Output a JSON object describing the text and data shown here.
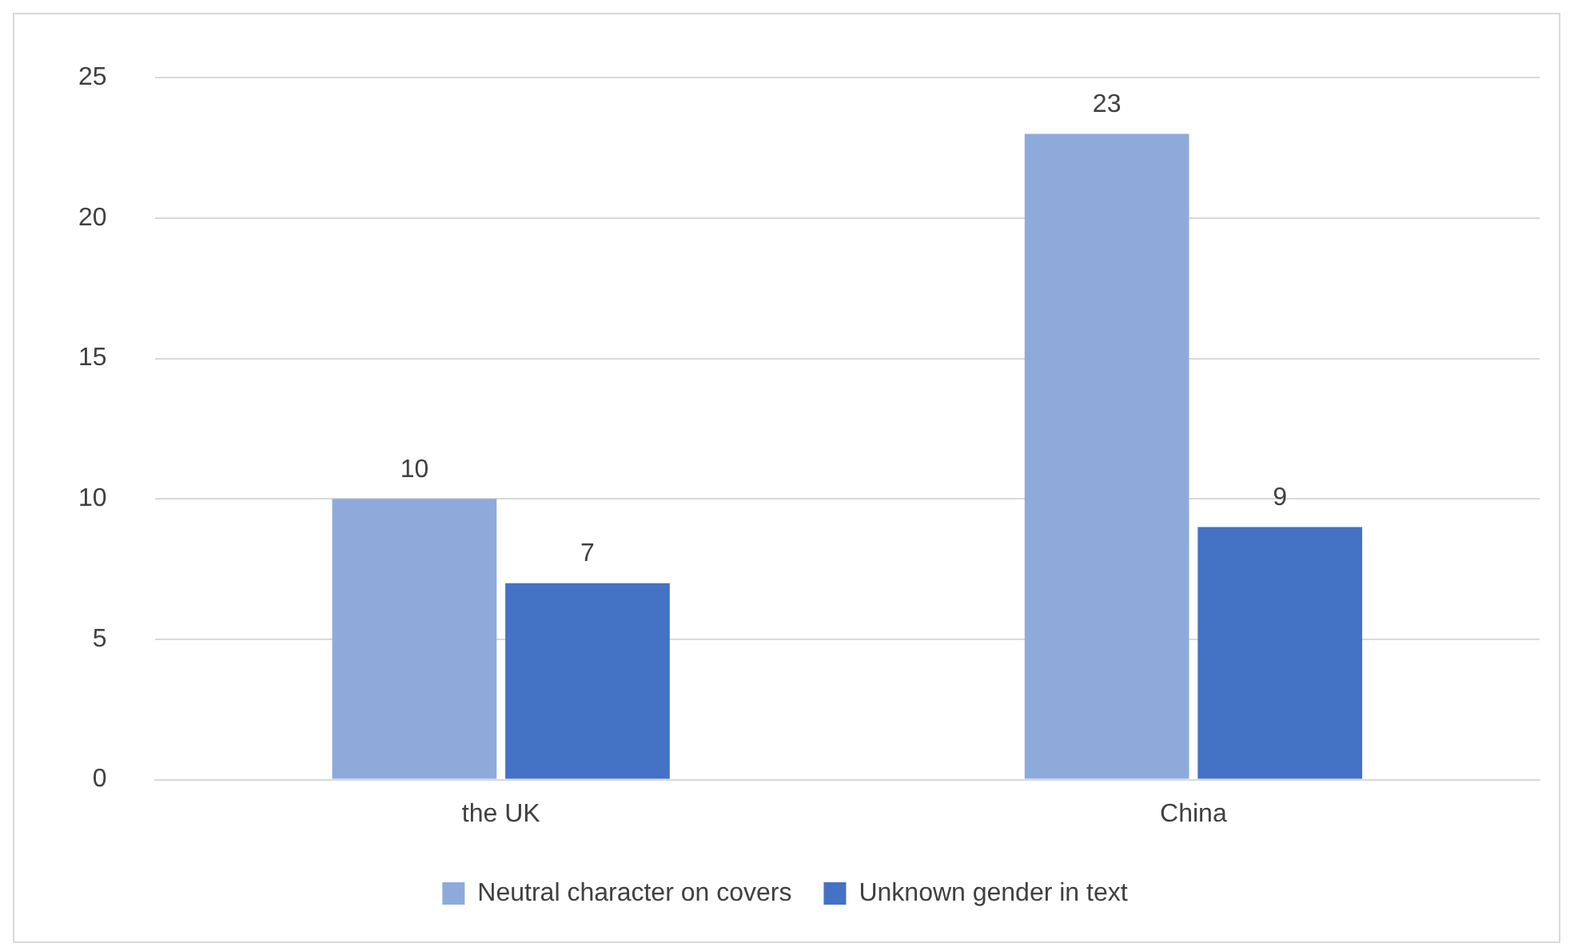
{
  "chart_data": {
    "type": "bar",
    "categories": [
      "the UK",
      "China"
    ],
    "series": [
      {
        "name": "Neutral character on covers",
        "color": "#8eaadb",
        "values": [
          10,
          23
        ]
      },
      {
        "name": "Unknown gender in text",
        "color": "#4472c4",
        "values": [
          7,
          9
        ]
      }
    ],
    "ylim": [
      0,
      25
    ],
    "yticks": [
      0,
      5,
      10,
      15,
      20,
      25
    ],
    "grid": "y",
    "legend": "bottom",
    "data_labels": true
  }
}
